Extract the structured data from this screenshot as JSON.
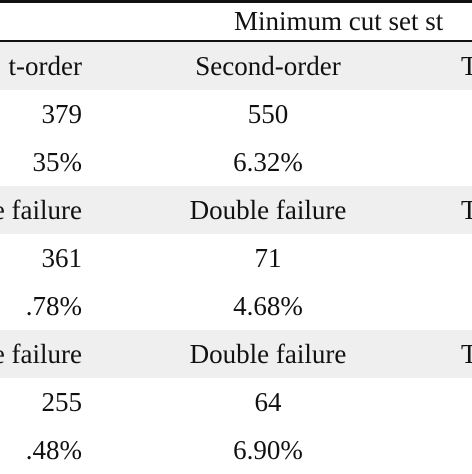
{
  "table": {
    "header_caption": "Minimum cut set st",
    "rows": [
      {
        "shaded": true,
        "c1": "t-order",
        "c2": "Second-order",
        "c3": "T"
      },
      {
        "shaded": false,
        "c1": "379",
        "c2": "550",
        "c3": ""
      },
      {
        "shaded": false,
        "c1": "35%",
        "c2": "6.32%",
        "c3": ""
      },
      {
        "shaded": true,
        "c1": "e failure",
        "c2": "Double failure",
        "c3": "T"
      },
      {
        "shaded": false,
        "c1": "361",
        "c2": "71",
        "c3": ""
      },
      {
        "shaded": false,
        "c1": ".78%",
        "c2": "4.68%",
        "c3": ""
      },
      {
        "shaded": true,
        "c1": "e failure",
        "c2": "Double failure",
        "c3": "T"
      },
      {
        "shaded": false,
        "c1": "255",
        "c2": "64",
        "c3": ""
      },
      {
        "shaded": false,
        "c1": ".48%",
        "c2": "6.90%",
        "c3": ""
      }
    ]
  }
}
